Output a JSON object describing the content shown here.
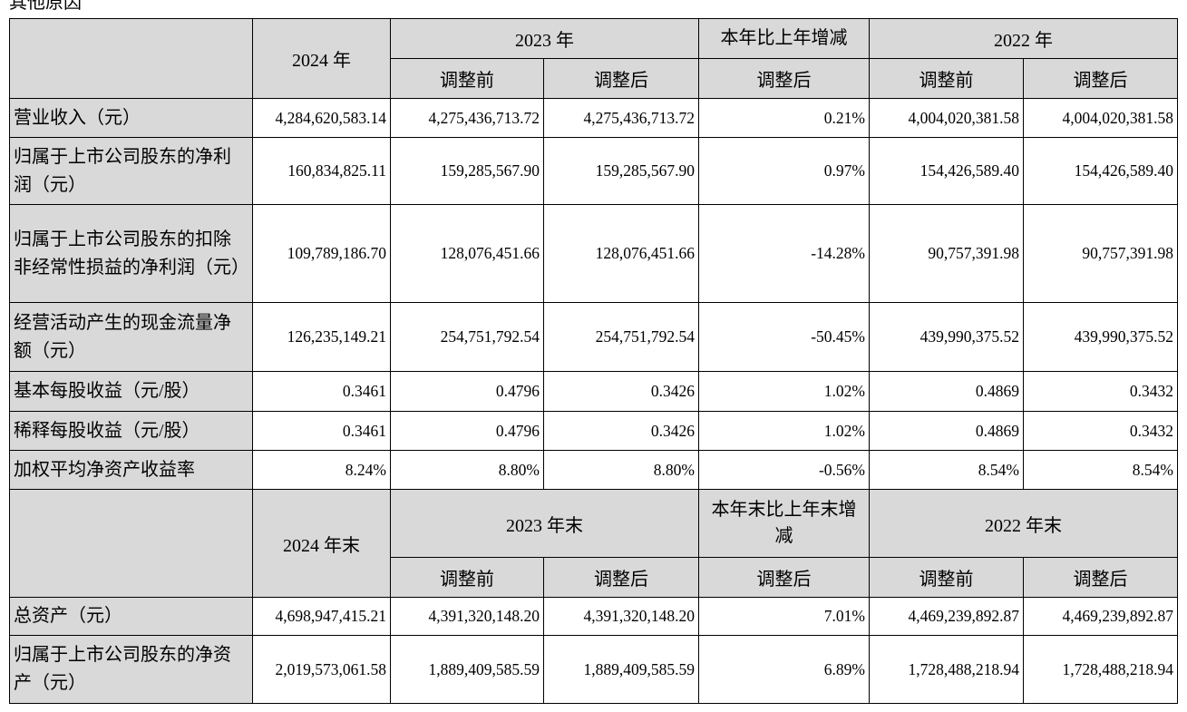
{
  "caption": "其他原因",
  "sections": [
    {
      "header": {
        "col1": "2024 年",
        "group1": "2023 年",
        "group2": "本年比上年增减",
        "group3": "2022 年",
        "sub": [
          "调整前",
          "调整后",
          "调整后",
          "调整前",
          "调整后"
        ]
      },
      "rows": [
        [
          "营业收入（元）",
          "4,284,620,583.14",
          "4,275,436,713.72",
          "4,275,436,713.72",
          "0.21%",
          "4,004,020,381.58",
          "4,004,020,381.58"
        ],
        [
          "归属于上市公司股东的净利润（元）",
          "160,834,825.11",
          "159,285,567.90",
          "159,285,567.90",
          "0.97%",
          "154,426,589.40",
          "154,426,589.40"
        ],
        [
          "归属于上市公司股东的扣除非经常性损益的净利润（元）",
          "109,789,186.70",
          "128,076,451.66",
          "128,076,451.66",
          "-14.28%",
          "90,757,391.98",
          "90,757,391.98"
        ],
        [
          "经营活动产生的现金流量净额（元）",
          "126,235,149.21",
          "254,751,792.54",
          "254,751,792.54",
          "-50.45%",
          "439,990,375.52",
          "439,990,375.52"
        ],
        [
          "基本每股收益（元/股）",
          "0.3461",
          "0.4796",
          "0.3426",
          "1.02%",
          "0.4869",
          "0.3432"
        ],
        [
          "稀释每股收益（元/股）",
          "0.3461",
          "0.4796",
          "0.3426",
          "1.02%",
          "0.4869",
          "0.3432"
        ],
        [
          "加权平均净资产收益率",
          "8.24%",
          "8.80%",
          "8.80%",
          "-0.56%",
          "8.54%",
          "8.54%"
        ]
      ]
    },
    {
      "header": {
        "col1": "2024 年末",
        "group1": "2023 年末",
        "group2": "本年末比上年末增减",
        "group3": "2022 年末",
        "sub": [
          "调整前",
          "调整后",
          "调整后",
          "调整前",
          "调整后"
        ]
      },
      "rows": [
        [
          "总资产（元）",
          "4,698,947,415.21",
          "4,391,320,148.20",
          "4,391,320,148.20",
          "7.01%",
          "4,469,239,892.87",
          "4,469,239,892.87"
        ],
        [
          "归属于上市公司股东的净资产（元）",
          "2,019,573,061.58",
          "1,889,409,585.59",
          "1,889,409,585.59",
          "6.89%",
          "1,728,488,218.94",
          "1,728,488,218.94"
        ]
      ]
    }
  ]
}
